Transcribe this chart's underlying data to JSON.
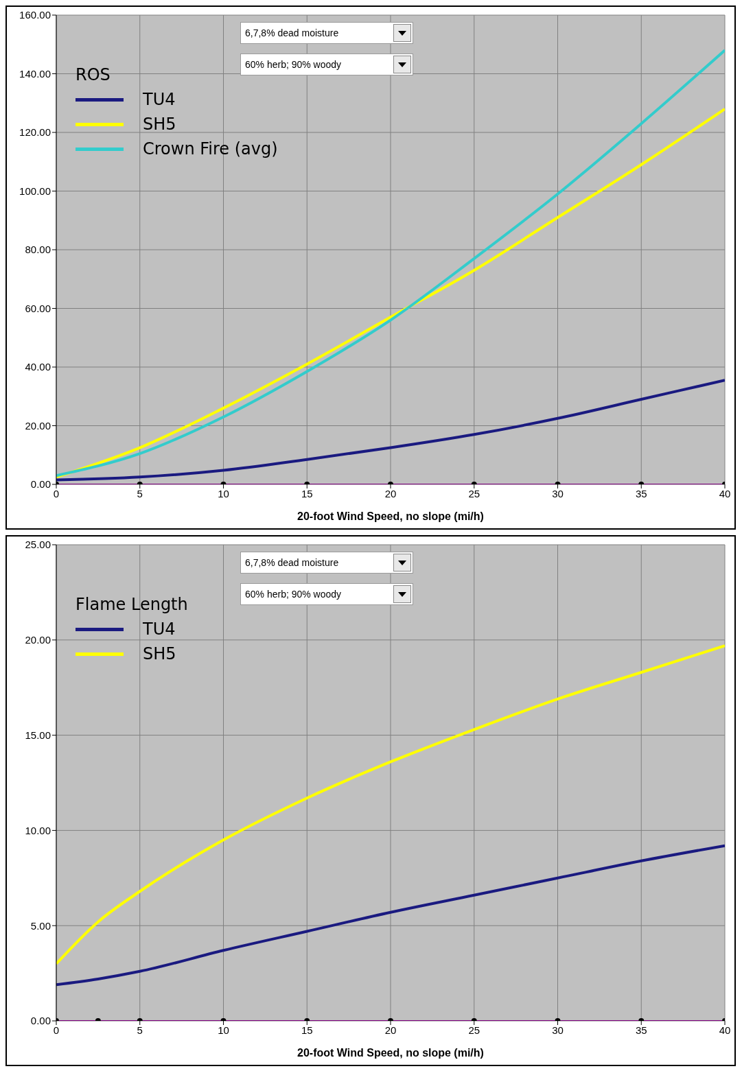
{
  "chart_data": [
    {
      "type": "line",
      "legend_title": "ROS",
      "xlabel": "20-foot Wind  Speed, no slope (mi/h)",
      "annotations": [
        "6,7,8% dead moisture",
        "60% herb; 90% woody"
      ],
      "x": [
        0,
        5,
        10,
        15,
        20,
        25,
        30,
        35,
        40
      ],
      "series": [
        {
          "name": "TU4",
          "color": "#1a1a80",
          "values": [
            1.5,
            2.5,
            4.8,
            8.5,
            12.5,
            17,
            22.5,
            29,
            35.5
          ]
        },
        {
          "name": "SH5",
          "color": "#ffff00",
          "values": [
            2.5,
            12.5,
            26,
            41,
            57,
            73,
            91,
            109,
            128
          ]
        },
        {
          "name": "Crown Fire (avg)",
          "color": "#33cccc",
          "values": [
            3,
            10.5,
            23,
            38.5,
            56,
            77,
            99,
            123,
            148
          ]
        },
        {
          "color": "#800080",
          "marker": "circle",
          "values": [
            0,
            0,
            0,
            0,
            0,
            0,
            0,
            0,
            0
          ]
        }
      ],
      "xlim": [
        0,
        40
      ],
      "xticks": [
        0,
        5,
        10,
        15,
        20,
        25,
        30,
        35,
        40
      ],
      "ylim": [
        0,
        160
      ],
      "yticks": [
        {
          "value": 0,
          "label": "0.00"
        },
        {
          "value": 20,
          "label": "20.00"
        },
        {
          "value": 40,
          "label": "40.00"
        },
        {
          "value": 60,
          "label": "60.00"
        },
        {
          "value": 80,
          "label": "80.00"
        },
        {
          "value": 100,
          "label": "100.00"
        },
        {
          "value": 120,
          "label": "120.00"
        },
        {
          "value": 140,
          "label": "140.00"
        },
        {
          "value": 160,
          "label": "160.00"
        }
      ],
      "grid": true,
      "legend": "top left"
    },
    {
      "type": "line",
      "legend_title": "Flame Length",
      "xlabel": "20-foot Wind  Speed, no slope (mi/h)",
      "annotations": [
        "6,7,8% dead moisture",
        "60% herb; 90% woody"
      ],
      "x": [
        0,
        2.5,
        5,
        10,
        15,
        20,
        25,
        30,
        35,
        40
      ],
      "series": [
        {
          "name": "TU4",
          "color": "#1a1a80",
          "values": [
            1.9,
            2.2,
            2.6,
            3.7,
            4.7,
            5.7,
            6.6,
            7.5,
            8.4,
            9.2
          ]
        },
        {
          "name": "SH5",
          "color": "#ffff00",
          "values": [
            3,
            5.2,
            6.8,
            9.5,
            11.7,
            13.6,
            15.3,
            16.9,
            18.3,
            19.7
          ]
        },
        {
          "color": "#800080",
          "marker": "circle",
          "values": [
            0,
            0,
            0,
            0,
            0,
            0,
            0,
            0,
            0,
            0
          ]
        }
      ],
      "xlim": [
        0,
        40
      ],
      "xticks": [
        0,
        5,
        10,
        15,
        20,
        25,
        30,
        35,
        40
      ],
      "ylim": [
        0,
        25
      ],
      "yticks": [
        {
          "value": 0,
          "label": "0.00"
        },
        {
          "value": 5,
          "label": "5.00"
        },
        {
          "value": 10,
          "label": "10.00"
        },
        {
          "value": 15,
          "label": "15.00"
        },
        {
          "value": 20,
          "label": "20.00"
        },
        {
          "value": 25,
          "label": "25.00"
        }
      ],
      "grid": true,
      "legend": "top left"
    }
  ]
}
